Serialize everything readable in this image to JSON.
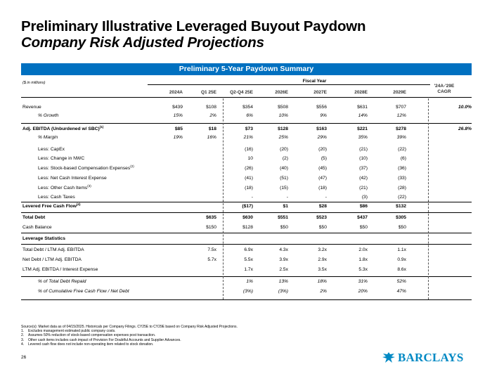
{
  "title": "Preliminary Illustrative Leveraged Buyout Paydown",
  "subtitle": "Company Risk Adjusted Projections",
  "banner": "Preliminary 5-Year Paydown Summary",
  "units": "($ in millions)",
  "fiscal_year": "Fiscal Year",
  "cagr_header": "'24A-'29E CAGR",
  "columns": [
    "2024A",
    "Q1 25E",
    "Q2-Q4 25E",
    "2026E",
    "2027E",
    "2028E",
    "2029E"
  ],
  "rows": [
    {
      "label": "Revenue",
      "sup": "",
      "values": [
        "$439",
        "$108",
        "$354",
        "$508",
        "$556",
        "$631",
        "$707"
      ],
      "cagr": "10.0%",
      "style": "normal"
    },
    {
      "label": "% Growth",
      "sup": "",
      "values": [
        "15%",
        "2%",
        "6%",
        "10%",
        "9%",
        "14%",
        "12%"
      ],
      "cagr": "",
      "style": "ital"
    },
    {
      "label": "Adj. EBITDA (Unburdened w/ SBC)",
      "sup": "(1)",
      "values": [
        "$85",
        "$18",
        "$73",
        "$128",
        "$163",
        "$221",
        "$278"
      ],
      "cagr": "26.8%",
      "style": "bold"
    },
    {
      "label": "% Margin",
      "sup": "",
      "values": [
        "19%",
        "16%",
        "21%",
        "25%",
        "29%",
        "35%",
        "39%"
      ],
      "cagr": "",
      "style": "ital"
    },
    {
      "label": "Less: CapEx",
      "sup": "",
      "values": [
        "",
        "",
        "(16)",
        "(20)",
        "(20)",
        "(21)",
        "(22)"
      ],
      "cagr": "",
      "style": "normal"
    },
    {
      "label": "Less: Change in NWC",
      "sup": "",
      "values": [
        "",
        "",
        "10",
        "(2)",
        "(5)",
        "(10)",
        "(6)"
      ],
      "cagr": "",
      "style": "normal"
    },
    {
      "label": "Less: Stock-based Compensation Expenses",
      "sup": "(2)",
      "values": [
        "",
        "",
        "(26)",
        "(40)",
        "(45)",
        "(37)",
        "(36)"
      ],
      "cagr": "",
      "style": "normal"
    },
    {
      "label": "Less: Net Cash Interest Expense",
      "sup": "",
      "values": [
        "",
        "",
        "(41)",
        "(51)",
        "(47)",
        "(42)",
        "(33)"
      ],
      "cagr": "",
      "style": "normal"
    },
    {
      "label": "Less: Other Cash Items",
      "sup": "(3)",
      "values": [
        "",
        "",
        "(18)",
        "(15)",
        "(18)",
        "(21)",
        "(28)"
      ],
      "cagr": "",
      "style": "normal"
    },
    {
      "label": "Less: Cash Taxes",
      "sup": "",
      "values": [
        "",
        "",
        "-",
        "-",
        "-",
        "(3)",
        "(22)"
      ],
      "cagr": "",
      "style": "normal"
    },
    {
      "label": "Levered Free Cash Flow",
      "sup": "(4)",
      "values": [
        "",
        "",
        "($17)",
        "$1",
        "$28",
        "$86",
        "$132"
      ],
      "cagr": "",
      "style": "bold"
    },
    {
      "label": "Total Debt",
      "sup": "",
      "values": [
        "",
        "$635",
        "$630",
        "$551",
        "$523",
        "$437",
        "$305"
      ],
      "cagr": "",
      "style": "bold"
    },
    {
      "label": "Cash Balance",
      "sup": "",
      "values": [
        "",
        "$150",
        "$128",
        "$50",
        "$50",
        "$50",
        "$50"
      ],
      "cagr": "",
      "style": "normal"
    },
    {
      "label": "Leverage Statistics",
      "sup": "",
      "values": [
        "",
        "",
        "",
        "",
        "",
        "",
        ""
      ],
      "cagr": "",
      "style": "bold"
    },
    {
      "label": "Total Debt / LTM Adj. EBITDA",
      "sup": "",
      "values": [
        "",
        "7.5x",
        "6.9x",
        "4.3x",
        "3.2x",
        "2.0x",
        "1.1x"
      ],
      "cagr": "",
      "style": "normal"
    },
    {
      "label": "Net Debt / LTM Adj. EBITDA",
      "sup": "",
      "values": [
        "",
        "5.7x",
        "5.5x",
        "3.9x",
        "2.9x",
        "1.8x",
        "0.9x"
      ],
      "cagr": "",
      "style": "normal"
    },
    {
      "label": "LTM Adj. EBITDA / Interest Expense",
      "sup": "",
      "values": [
        "",
        "",
        "1.7x",
        "2.5x",
        "3.5x",
        "5.3x",
        "8.6x"
      ],
      "cagr": "",
      "style": "normal"
    },
    {
      "label": "% of Total Debt Repaid",
      "sup": "",
      "values": [
        "",
        "",
        "1%",
        "13%",
        "18%",
        "31%",
        "52%"
      ],
      "cagr": "",
      "style": "ital"
    },
    {
      "label": "% of Cumulative Free Cash Flow / Net Debt",
      "sup": "",
      "values": [
        "",
        "",
        "(3%)",
        "(3%)",
        "2%",
        "20%",
        "47%"
      ],
      "cagr": "",
      "style": "ital"
    }
  ],
  "notes": {
    "source": "Source(s): Market data as of 04/15/2025. Historicals per Company Filings. CY25E to CY29E based on Company Risk Adjusted Projections.",
    "items": [
      {
        "num": "1.",
        "text": "Excludes management estimated public company costs."
      },
      {
        "num": "2.",
        "text": "Assumes 50% reduction of stock-based compensation expenses post transaction."
      },
      {
        "num": "3.",
        "text": "Other cash items includes cash impact of Provision For Doubtful Accounts and Supplier Advances."
      },
      {
        "num": "4.",
        "text": "Levered cash flow does not include non-operating item related to stock donation."
      }
    ]
  },
  "page_number": "26",
  "logo_text": "BARCLAYS",
  "brand_colors": {
    "banner": "#0070C0",
    "logo": "#0089C4"
  }
}
